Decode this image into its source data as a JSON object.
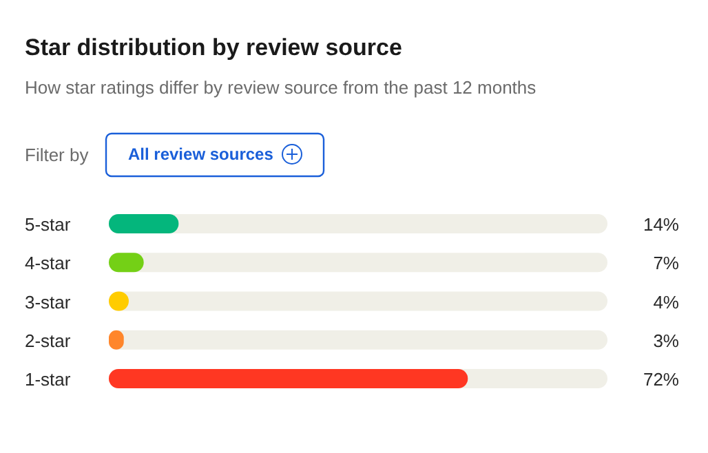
{
  "chart_data": {
    "type": "bar",
    "orientation": "horizontal",
    "title": "Star distribution by review source",
    "subtitle": "How star ratings differ by review source from the past 12 months",
    "annotations": [
      "Filter by",
      "All review sources"
    ],
    "categories": [
      "5-star",
      "4-star",
      "3-star",
      "2-star",
      "1-star"
    ],
    "values": [
      14,
      7,
      4,
      3,
      72
    ],
    "colors": [
      "#04b67c",
      "#74d016",
      "#ffcc00",
      "#ff862b",
      "#ff3722"
    ],
    "value_labels": [
      "14%",
      "7%",
      "4%",
      "3%",
      "72%"
    ],
    "xlim": [
      0,
      100
    ],
    "tick_labels": "y"
  }
}
